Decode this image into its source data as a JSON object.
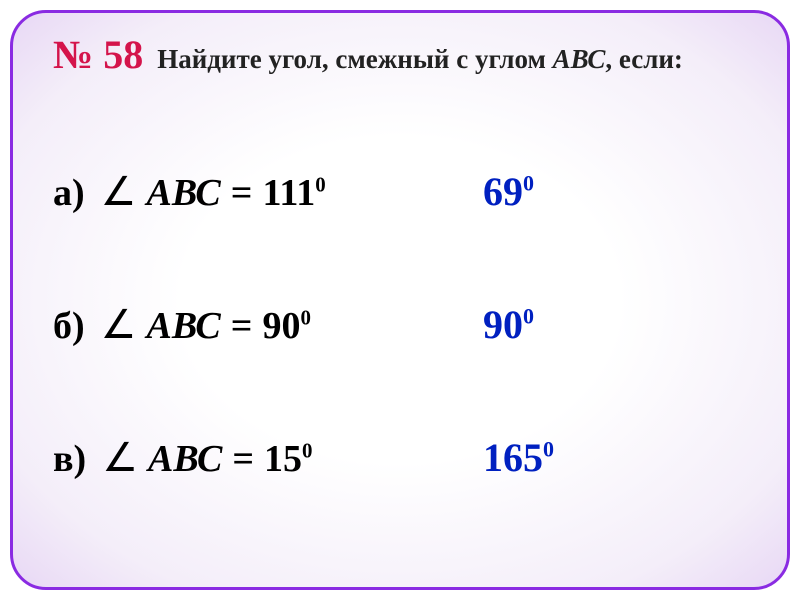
{
  "problem_number": "№ 58",
  "question_prefix": "Найдите угол, смежный с углом ",
  "question_var": "АВС",
  "question_suffix": ", если:",
  "angle_symbol": "∠",
  "angle_name": "АВС",
  "equals": " = ",
  "colors": {
    "border": "#8a2be2",
    "problem_number": "#d4144b",
    "text": "#000000",
    "answer": "#0020c0"
  },
  "fonts": {
    "number_size": 40,
    "question_size": 27,
    "row_size": 38,
    "answer_size": 40
  },
  "items": [
    {
      "label": "а)",
      "given": "111",
      "answer": "69"
    },
    {
      "label": "б)",
      "given": "90",
      "answer": "90"
    },
    {
      "label": "в)",
      "given": "15",
      "answer": "165"
    }
  ]
}
